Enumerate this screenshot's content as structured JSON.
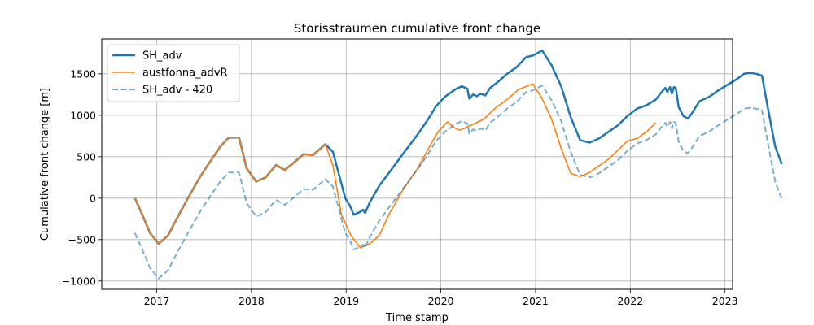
{
  "chart_data": {
    "type": "line",
    "title": "Storisstraumen cumulative front change",
    "xlabel": "Time stamp",
    "ylabel": "Cumulative front change [m]",
    "xlim": [
      2016.42,
      2023.08
    ],
    "ylim": [
      -1100,
      1920
    ],
    "x_ticks": [
      2017,
      2018,
      2019,
      2020,
      2021,
      2022,
      2023
    ],
    "y_ticks": [
      -1000,
      -500,
      0,
      500,
      1000,
      1500
    ],
    "grid": true,
    "legend_position": "top-left",
    "series": [
      {
        "name": "SH_adv",
        "color": "#1f77b4",
        "style": "solid-thick",
        "points": [
          [
            2016.77,
            0
          ],
          [
            2016.84,
            -180
          ],
          [
            2016.93,
            -420
          ],
          [
            2017.02,
            -550
          ],
          [
            2017.12,
            -450
          ],
          [
            2017.22,
            -230
          ],
          [
            2017.33,
            0
          ],
          [
            2017.46,
            260
          ],
          [
            2017.57,
            450
          ],
          [
            2017.67,
            620
          ],
          [
            2017.76,
            730
          ],
          [
            2017.87,
            730
          ],
          [
            2017.95,
            360
          ],
          [
            2018.05,
            200
          ],
          [
            2018.15,
            250
          ],
          [
            2018.26,
            400
          ],
          [
            2018.35,
            340
          ],
          [
            2018.45,
            430
          ],
          [
            2018.55,
            530
          ],
          [
            2018.65,
            520
          ],
          [
            2018.78,
            650
          ],
          [
            2018.86,
            560
          ],
          [
            2018.94,
            220
          ],
          [
            2018.99,
            0
          ],
          [
            2019.04,
            -90
          ],
          [
            2019.08,
            -200
          ],
          [
            2019.14,
            -170
          ],
          [
            2019.18,
            -140
          ],
          [
            2019.2,
            -180
          ],
          [
            2019.25,
            -50
          ],
          [
            2019.35,
            150
          ],
          [
            2019.5,
            380
          ],
          [
            2019.63,
            580
          ],
          [
            2019.75,
            760
          ],
          [
            2019.87,
            960
          ],
          [
            2019.95,
            1110
          ],
          [
            2020.04,
            1220
          ],
          [
            2020.15,
            1310
          ],
          [
            2020.22,
            1350
          ],
          [
            2020.28,
            1320
          ],
          [
            2020.3,
            1200
          ],
          [
            2020.34,
            1250
          ],
          [
            2020.38,
            1230
          ],
          [
            2020.42,
            1260
          ],
          [
            2020.47,
            1240
          ],
          [
            2020.52,
            1330
          ],
          [
            2020.6,
            1400
          ],
          [
            2020.7,
            1500
          ],
          [
            2020.8,
            1580
          ],
          [
            2020.9,
            1700
          ],
          [
            2020.97,
            1720
          ],
          [
            2021.07,
            1780
          ],
          [
            2021.17,
            1600
          ],
          [
            2021.27,
            1350
          ],
          [
            2021.37,
            980
          ],
          [
            2021.47,
            700
          ],
          [
            2021.57,
            670
          ],
          [
            2021.67,
            720
          ],
          [
            2021.77,
            800
          ],
          [
            2021.87,
            880
          ],
          [
            2021.97,
            990
          ],
          [
            2022.07,
            1080
          ],
          [
            2022.17,
            1120
          ],
          [
            2022.27,
            1190
          ],
          [
            2022.33,
            1280
          ],
          [
            2022.37,
            1330
          ],
          [
            2022.39,
            1280
          ],
          [
            2022.42,
            1340
          ],
          [
            2022.44,
            1260
          ],
          [
            2022.46,
            1340
          ],
          [
            2022.48,
            1330
          ],
          [
            2022.51,
            1100
          ],
          [
            2022.56,
            990
          ],
          [
            2022.61,
            960
          ],
          [
            2022.66,
            1040
          ],
          [
            2022.73,
            1170
          ],
          [
            2022.83,
            1220
          ],
          [
            2022.93,
            1300
          ],
          [
            2023.03,
            1370
          ],
          [
            2023.13,
            1440
          ],
          [
            2023.2,
            1500
          ],
          [
            2023.27,
            1510
          ],
          [
            2023.33,
            1500
          ],
          [
            2023.39,
            1480
          ],
          [
            2023.45,
            1100
          ],
          [
            2023.53,
            620
          ],
          [
            2023.6,
            410
          ]
        ]
      },
      {
        "name": "austfonna_advR",
        "color": "#ff7f0e",
        "style": "solid",
        "points": [
          [
            2016.77,
            0
          ],
          [
            2016.84,
            -180
          ],
          [
            2016.93,
            -420
          ],
          [
            2017.02,
            -550
          ],
          [
            2017.12,
            -450
          ],
          [
            2017.22,
            -230
          ],
          [
            2017.33,
            0
          ],
          [
            2017.46,
            260
          ],
          [
            2017.57,
            450
          ],
          [
            2017.67,
            620
          ],
          [
            2017.76,
            730
          ],
          [
            2017.87,
            730
          ],
          [
            2017.95,
            360
          ],
          [
            2018.05,
            200
          ],
          [
            2018.15,
            250
          ],
          [
            2018.26,
            400
          ],
          [
            2018.35,
            340
          ],
          [
            2018.45,
            430
          ],
          [
            2018.55,
            530
          ],
          [
            2018.65,
            520
          ],
          [
            2018.78,
            650
          ],
          [
            2018.86,
            400
          ],
          [
            2018.95,
            -200
          ],
          [
            2019.05,
            -450
          ],
          [
            2019.15,
            -600
          ],
          [
            2019.25,
            -550
          ],
          [
            2019.35,
            -450
          ],
          [
            2019.45,
            -200
          ],
          [
            2019.6,
            100
          ],
          [
            2019.75,
            350
          ],
          [
            2019.87,
            600
          ],
          [
            2019.97,
            800
          ],
          [
            2020.07,
            920
          ],
          [
            2020.14,
            850
          ],
          [
            2020.2,
            820
          ],
          [
            2020.3,
            870
          ],
          [
            2020.45,
            950
          ],
          [
            2020.58,
            1090
          ],
          [
            2020.72,
            1210
          ],
          [
            2020.82,
            1310
          ],
          [
            2020.97,
            1380
          ],
          [
            2021.07,
            1200
          ],
          [
            2021.17,
            950
          ],
          [
            2021.27,
            600
          ],
          [
            2021.37,
            300
          ],
          [
            2021.47,
            260
          ],
          [
            2021.57,
            310
          ],
          [
            2021.67,
            390
          ],
          [
            2021.77,
            470
          ],
          [
            2021.87,
            580
          ],
          [
            2021.97,
            690
          ],
          [
            2022.07,
            720
          ],
          [
            2022.17,
            800
          ],
          [
            2022.27,
            910
          ]
        ]
      },
      {
        "name": "SH_adv - 420",
        "color": "#1f77b4",
        "style": "dashed-faded",
        "points": [
          [
            2016.77,
            -420
          ],
          [
            2016.84,
            -600
          ],
          [
            2016.93,
            -840
          ],
          [
            2017.02,
            -970
          ],
          [
            2017.12,
            -870
          ],
          [
            2017.22,
            -650
          ],
          [
            2017.33,
            -420
          ],
          [
            2017.46,
            -160
          ],
          [
            2017.57,
            30
          ],
          [
            2017.67,
            200
          ],
          [
            2017.76,
            310
          ],
          [
            2017.87,
            310
          ],
          [
            2017.95,
            -60
          ],
          [
            2018.05,
            -220
          ],
          [
            2018.15,
            -170
          ],
          [
            2018.26,
            -20
          ],
          [
            2018.35,
            -80
          ],
          [
            2018.45,
            10
          ],
          [
            2018.55,
            110
          ],
          [
            2018.65,
            100
          ],
          [
            2018.78,
            230
          ],
          [
            2018.86,
            140
          ],
          [
            2018.94,
            -200
          ],
          [
            2018.99,
            -420
          ],
          [
            2019.04,
            -510
          ],
          [
            2019.08,
            -620
          ],
          [
            2019.14,
            -590
          ],
          [
            2019.18,
            -560
          ],
          [
            2019.2,
            -600
          ],
          [
            2019.25,
            -470
          ],
          [
            2019.35,
            -270
          ],
          [
            2019.5,
            -40
          ],
          [
            2019.63,
            160
          ],
          [
            2019.75,
            340
          ],
          [
            2019.87,
            540
          ],
          [
            2019.95,
            690
          ],
          [
            2020.04,
            800
          ],
          [
            2020.15,
            890
          ],
          [
            2020.22,
            930
          ],
          [
            2020.28,
            900
          ],
          [
            2020.3,
            780
          ],
          [
            2020.34,
            830
          ],
          [
            2020.38,
            810
          ],
          [
            2020.42,
            840
          ],
          [
            2020.47,
            820
          ],
          [
            2020.52,
            910
          ],
          [
            2020.6,
            980
          ],
          [
            2020.7,
            1080
          ],
          [
            2020.8,
            1160
          ],
          [
            2020.9,
            1280
          ],
          [
            2020.97,
            1300
          ],
          [
            2021.07,
            1360
          ],
          [
            2021.17,
            1180
          ],
          [
            2021.27,
            930
          ],
          [
            2021.37,
            560
          ],
          [
            2021.47,
            280
          ],
          [
            2021.57,
            250
          ],
          [
            2021.67,
            300
          ],
          [
            2021.77,
            380
          ],
          [
            2021.87,
            460
          ],
          [
            2021.97,
            570
          ],
          [
            2022.07,
            660
          ],
          [
            2022.17,
            700
          ],
          [
            2022.27,
            770
          ],
          [
            2022.33,
            860
          ],
          [
            2022.37,
            910
          ],
          [
            2022.39,
            860
          ],
          [
            2022.42,
            920
          ],
          [
            2022.44,
            840
          ],
          [
            2022.46,
            920
          ],
          [
            2022.48,
            910
          ],
          [
            2022.51,
            680
          ],
          [
            2022.56,
            570
          ],
          [
            2022.61,
            540
          ],
          [
            2022.66,
            620
          ],
          [
            2022.73,
            750
          ],
          [
            2022.83,
            800
          ],
          [
            2022.93,
            880
          ],
          [
            2023.03,
            950
          ],
          [
            2023.13,
            1020
          ],
          [
            2023.2,
            1080
          ],
          [
            2023.27,
            1090
          ],
          [
            2023.33,
            1080
          ],
          [
            2023.39,
            1060
          ],
          [
            2023.45,
            680
          ],
          [
            2023.53,
            200
          ],
          [
            2023.6,
            -10
          ]
        ]
      }
    ]
  }
}
